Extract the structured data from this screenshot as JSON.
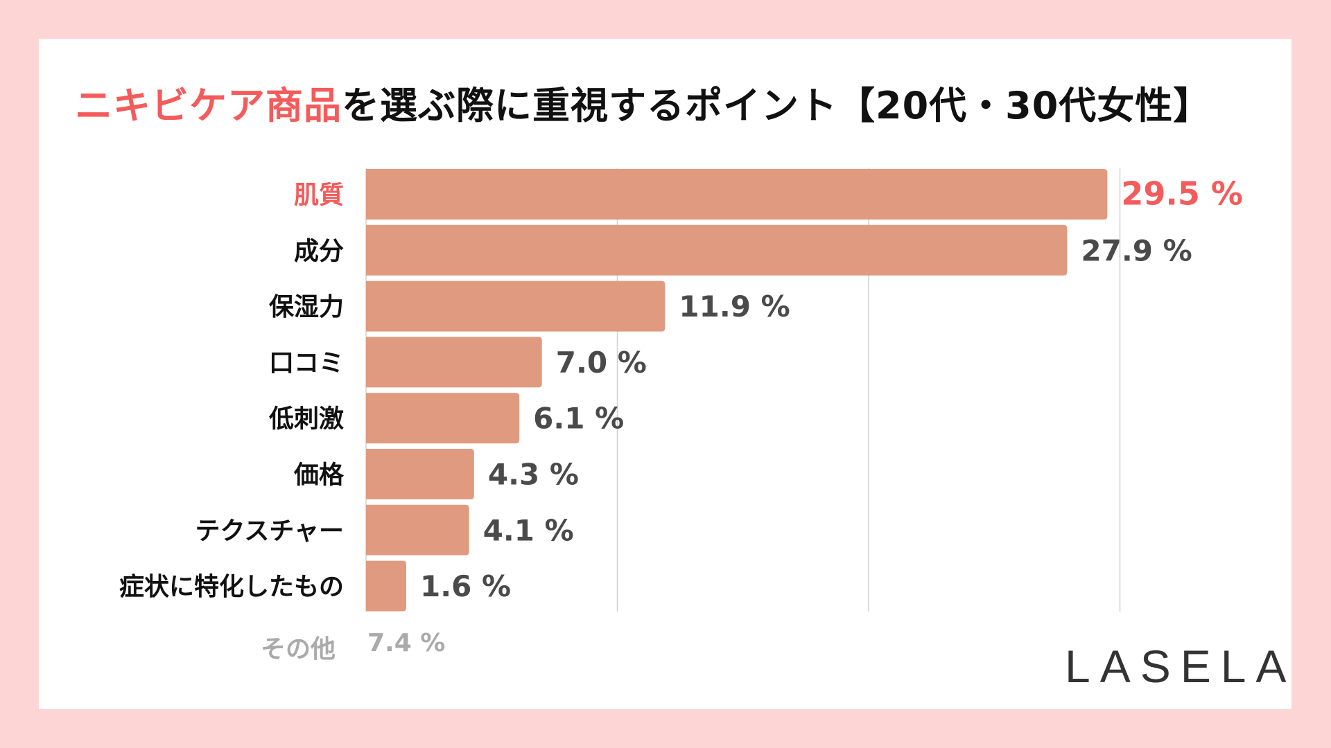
{
  "title": {
    "highlight": "ニキビケア商品",
    "rest": "を選ぶ際に重視するポイント【20代・30代女性】"
  },
  "colors": {
    "background": "#fdd5d5",
    "bar": "#e09a80",
    "highlight": "#f45b5b",
    "value_text": "#4a4a4a",
    "other_text": "#aaaaaa",
    "gridline": "#d0d0d0"
  },
  "chart_data": {
    "type": "bar",
    "orientation": "horizontal",
    "title": "ニキビケア商品を選ぶ際に重視するポイント【20代・30代女性】",
    "categories": [
      "肌質",
      "成分",
      "保湿力",
      "口コミ",
      "低刺激",
      "価格",
      "テクスチャー",
      "症状に特化したもの"
    ],
    "values": [
      29.5,
      27.9,
      11.9,
      7.0,
      6.1,
      4.3,
      4.1,
      1.6
    ],
    "value_labels": [
      "29.5 %",
      "27.9 %",
      "11.9 %",
      "7.0 %",
      "6.1 %",
      "4.3 %",
      "4.1 %",
      "1.6 %"
    ],
    "highlighted_category": "肌質",
    "unit": "%",
    "xlim": [
      0,
      30
    ],
    "gridlines": [
      10,
      20,
      30
    ],
    "grid": true,
    "legend": "none"
  },
  "other": {
    "label": "その他",
    "value": "7.4 %"
  },
  "logo": "LASELA"
}
